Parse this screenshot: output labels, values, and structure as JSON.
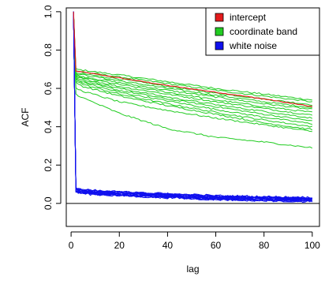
{
  "chart_data": {
    "type": "line",
    "title": "",
    "xlabel": "lag",
    "ylabel": "ACF",
    "xlim": [
      -2,
      103
    ],
    "ylim": [
      -0.12,
      1.02
    ],
    "x_ticks": [
      0,
      20,
      40,
      60,
      80,
      100
    ],
    "y_ticks": [
      0.0,
      0.2,
      0.4,
      0.6,
      0.8,
      1.0
    ],
    "x_tick_labels": [
      "0",
      "20",
      "40",
      "60",
      "80",
      "100"
    ],
    "y_tick_labels": [
      "0.0",
      "0.2",
      "0.4",
      "0.6",
      "0.8",
      "1.0"
    ],
    "zero_line": 0,
    "grid": false,
    "legend": {
      "position": "top-right",
      "entries": [
        {
          "label": "intercept",
          "color": "#e41a1c"
        },
        {
          "label": "coordinate band",
          "color": "#22cc22"
        },
        {
          "label": "white noise",
          "color": "#1010ee"
        }
      ]
    },
    "series": [
      {
        "name": "intercept",
        "color": "#e41a1c",
        "kind": "single",
        "x": [
          1,
          2,
          5,
          20,
          40,
          60,
          80,
          100
        ],
        "values": [
          1.0,
          0.69,
          0.685,
          0.655,
          0.615,
          0.58,
          0.545,
          0.505
        ]
      },
      {
        "name": "coordinate band",
        "color": "#22cc22",
        "kind": "band",
        "x": [
          1,
          2,
          5,
          20,
          40,
          60,
          80,
          100
        ],
        "lines": [
          [
            1.0,
            0.7,
            0.695,
            0.67,
            0.635,
            0.6,
            0.57,
            0.54
          ],
          [
            1.0,
            0.69,
            0.685,
            0.66,
            0.625,
            0.59,
            0.56,
            0.53
          ],
          [
            1.0,
            0.68,
            0.675,
            0.65,
            0.61,
            0.575,
            0.545,
            0.515
          ],
          [
            1.0,
            0.675,
            0.67,
            0.64,
            0.6,
            0.565,
            0.53,
            0.5
          ],
          [
            1.0,
            0.67,
            0.66,
            0.63,
            0.59,
            0.555,
            0.52,
            0.49
          ],
          [
            1.0,
            0.665,
            0.655,
            0.62,
            0.58,
            0.54,
            0.505,
            0.475
          ],
          [
            1.0,
            0.66,
            0.65,
            0.61,
            0.57,
            0.53,
            0.495,
            0.46
          ],
          [
            1.0,
            0.655,
            0.645,
            0.6,
            0.555,
            0.515,
            0.48,
            0.445
          ],
          [
            1.0,
            0.65,
            0.635,
            0.59,
            0.545,
            0.505,
            0.465,
            0.43
          ],
          [
            1.0,
            0.645,
            0.63,
            0.58,
            0.535,
            0.49,
            0.45,
            0.415
          ],
          [
            1.0,
            0.64,
            0.62,
            0.57,
            0.52,
            0.475,
            0.435,
            0.4
          ],
          [
            1.0,
            0.63,
            0.61,
            0.56,
            0.51,
            0.465,
            0.42,
            0.385
          ],
          [
            1.0,
            0.6,
            0.585,
            0.53,
            0.485,
            0.445,
            0.41,
            0.375
          ],
          [
            1.0,
            0.57,
            0.55,
            0.47,
            0.39,
            0.345,
            0.32,
            0.29
          ]
        ]
      },
      {
        "name": "white noise",
        "color": "#1010ee",
        "kind": "noise",
        "x": [
          1,
          2,
          5,
          20,
          40,
          60,
          80,
          100
        ],
        "values": [
          1.0,
          0.07,
          0.06,
          0.05,
          0.04,
          0.03,
          0.025,
          0.02
        ],
        "spread": 0.02
      }
    ]
  }
}
